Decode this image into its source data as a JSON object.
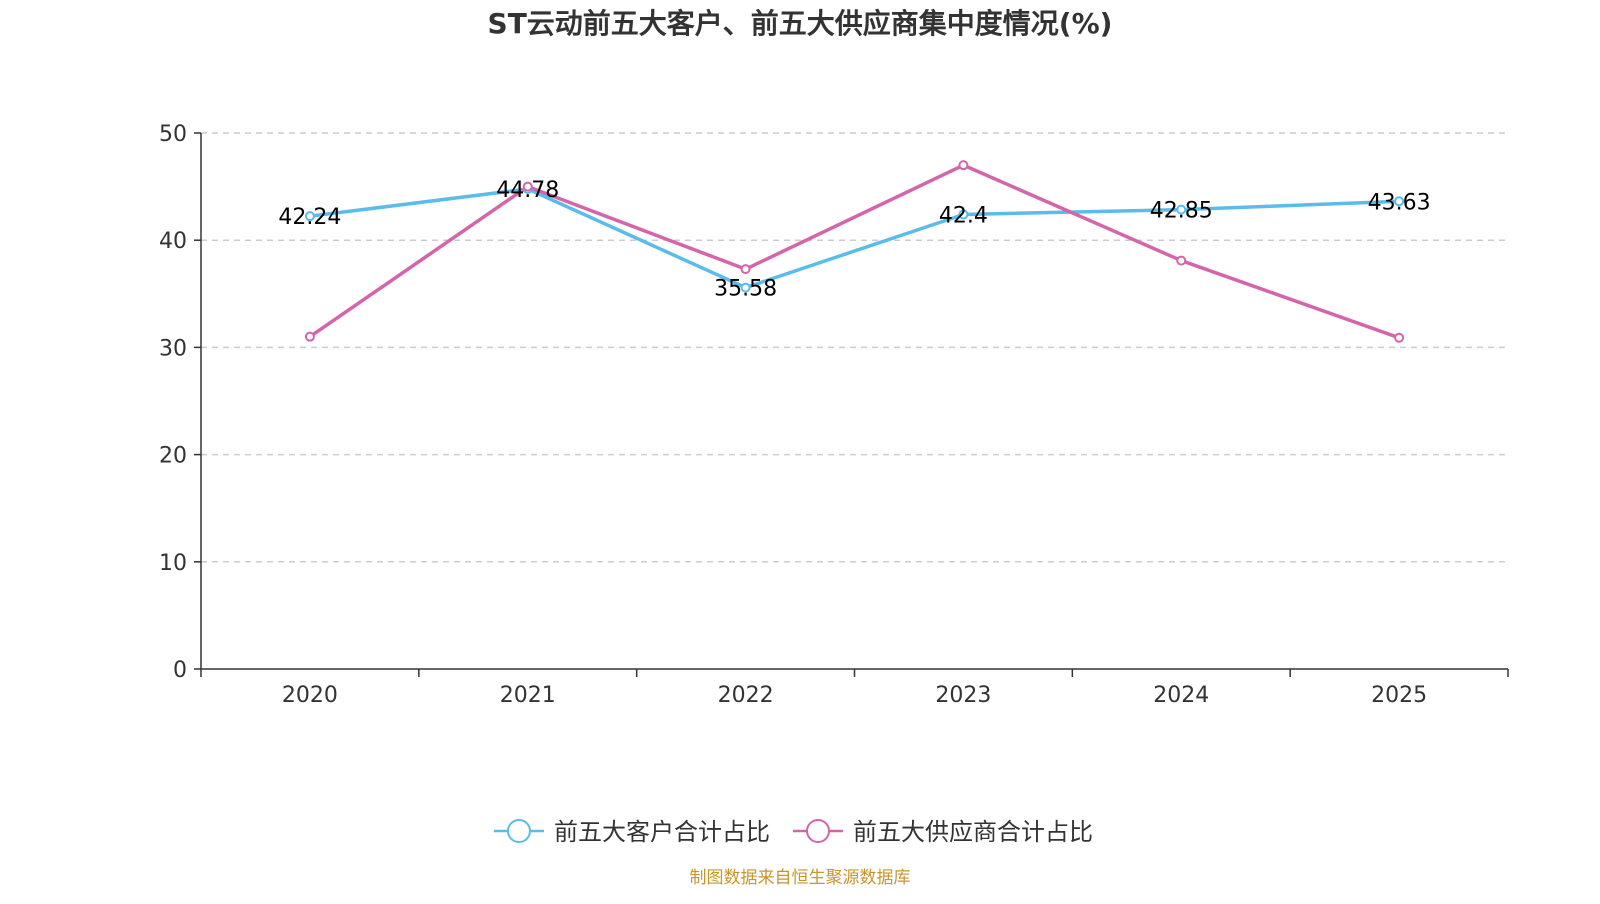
{
  "chart_data": {
    "type": "line",
    "title": "ST云动前五大客户、前五大供应商集中度情况(%)",
    "categories": [
      "2020",
      "2021",
      "2022",
      "2023",
      "2024",
      "2025"
    ],
    "ylim": [
      0,
      50
    ],
    "yticks": [
      0,
      10,
      20,
      30,
      40,
      50
    ],
    "xlabel": "",
    "ylabel": "",
    "grid": true,
    "legend_position": "bottom",
    "series": [
      {
        "name": "前五大客户合计占比",
        "color": "#5bbcec",
        "values": [
          42.24,
          44.78,
          35.58,
          42.4,
          42.85,
          43.63
        ],
        "labels": [
          "42.24",
          "44.78",
          "35.58",
          "42.4",
          "42.85",
          "43.63"
        ]
      },
      {
        "name": "前五大供应商合计占比",
        "color": "#d465ab",
        "values": [
          31.0,
          45.0,
          37.3,
          47.0,
          38.1,
          30.9
        ]
      }
    ]
  },
  "source": {
    "text": "制图数据来自恒生聚源数据库",
    "color": "#c8952e"
  }
}
